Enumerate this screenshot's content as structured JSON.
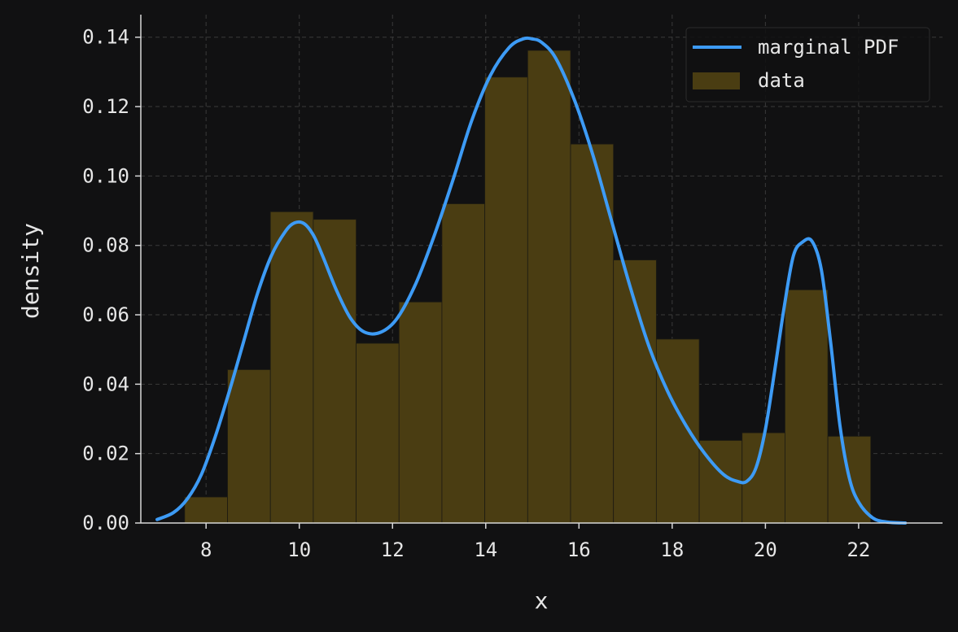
{
  "chart_data": {
    "type": "bar",
    "title": "",
    "xlabel": "x",
    "ylabel": "density",
    "xlim": [
      6.6,
      23.8
    ],
    "ylim": [
      0,
      0.1465
    ],
    "grid": true,
    "legend_position": "top-right",
    "x_ticks": [
      8,
      10,
      12,
      14,
      16,
      18,
      20,
      22
    ],
    "x_tick_labels": [
      "8",
      "10",
      "12",
      "14",
      "16",
      "18",
      "20",
      "22"
    ],
    "y_ticks": [
      0,
      0.02,
      0.04,
      0.06,
      0.08,
      0.1,
      0.12,
      0.14
    ],
    "y_tick_labels": [
      "0.00",
      "0.02",
      "0.04",
      "0.06",
      "0.08",
      "0.10",
      "0.12",
      "0.14"
    ],
    "histogram": {
      "name": "data",
      "bin_edges": [
        7.54,
        8.46,
        9.38,
        10.3,
        11.22,
        12.14,
        13.06,
        13.98,
        14.9,
        15.82,
        16.74,
        17.66,
        18.58,
        19.5,
        20.42,
        21.34,
        22.26
      ],
      "values": [
        0.0075,
        0.0442,
        0.0897,
        0.0875,
        0.0518,
        0.0637,
        0.092,
        0.1285,
        0.1362,
        0.1092,
        0.0758,
        0.053,
        0.0238,
        0.026,
        0.0672,
        0.025
      ],
      "color": "#4a3d12"
    },
    "series": [
      {
        "name": "marginal PDF",
        "color": "#3d9bf5",
        "x": [
          6.95,
          7.3,
          7.6,
          7.9,
          8.2,
          8.5,
          8.8,
          9.1,
          9.4,
          9.7,
          9.9,
          10.1,
          10.3,
          10.5,
          10.8,
          11.1,
          11.4,
          11.75,
          12.1,
          12.5,
          12.9,
          13.3,
          13.7,
          14.1,
          14.5,
          14.8,
          15.0,
          15.2,
          15.5,
          15.9,
          16.3,
          16.7,
          17.1,
          17.5,
          17.9,
          18.3,
          18.7,
          19.1,
          19.4,
          19.6,
          19.8,
          20.0,
          20.2,
          20.4,
          20.6,
          20.8,
          21.0,
          21.2,
          21.4,
          21.6,
          21.8,
          22.0,
          22.3,
          22.6,
          23.0
        ],
        "y": [
          0.001,
          0.003,
          0.007,
          0.014,
          0.025,
          0.038,
          0.052,
          0.066,
          0.077,
          0.084,
          0.0865,
          0.0863,
          0.083,
          0.077,
          0.067,
          0.059,
          0.055,
          0.055,
          0.059,
          0.069,
          0.083,
          0.099,
          0.116,
          0.129,
          0.137,
          0.1395,
          0.1395,
          0.1385,
          0.134,
          0.122,
          0.106,
          0.087,
          0.068,
          0.051,
          0.038,
          0.028,
          0.02,
          0.014,
          0.012,
          0.012,
          0.016,
          0.027,
          0.044,
          0.062,
          0.077,
          0.081,
          0.0812,
          0.073,
          0.052,
          0.028,
          0.013,
          0.006,
          0.0015,
          0.0003,
          0.0
        ]
      }
    ],
    "legend": [
      "marginal PDF",
      "data"
    ]
  }
}
